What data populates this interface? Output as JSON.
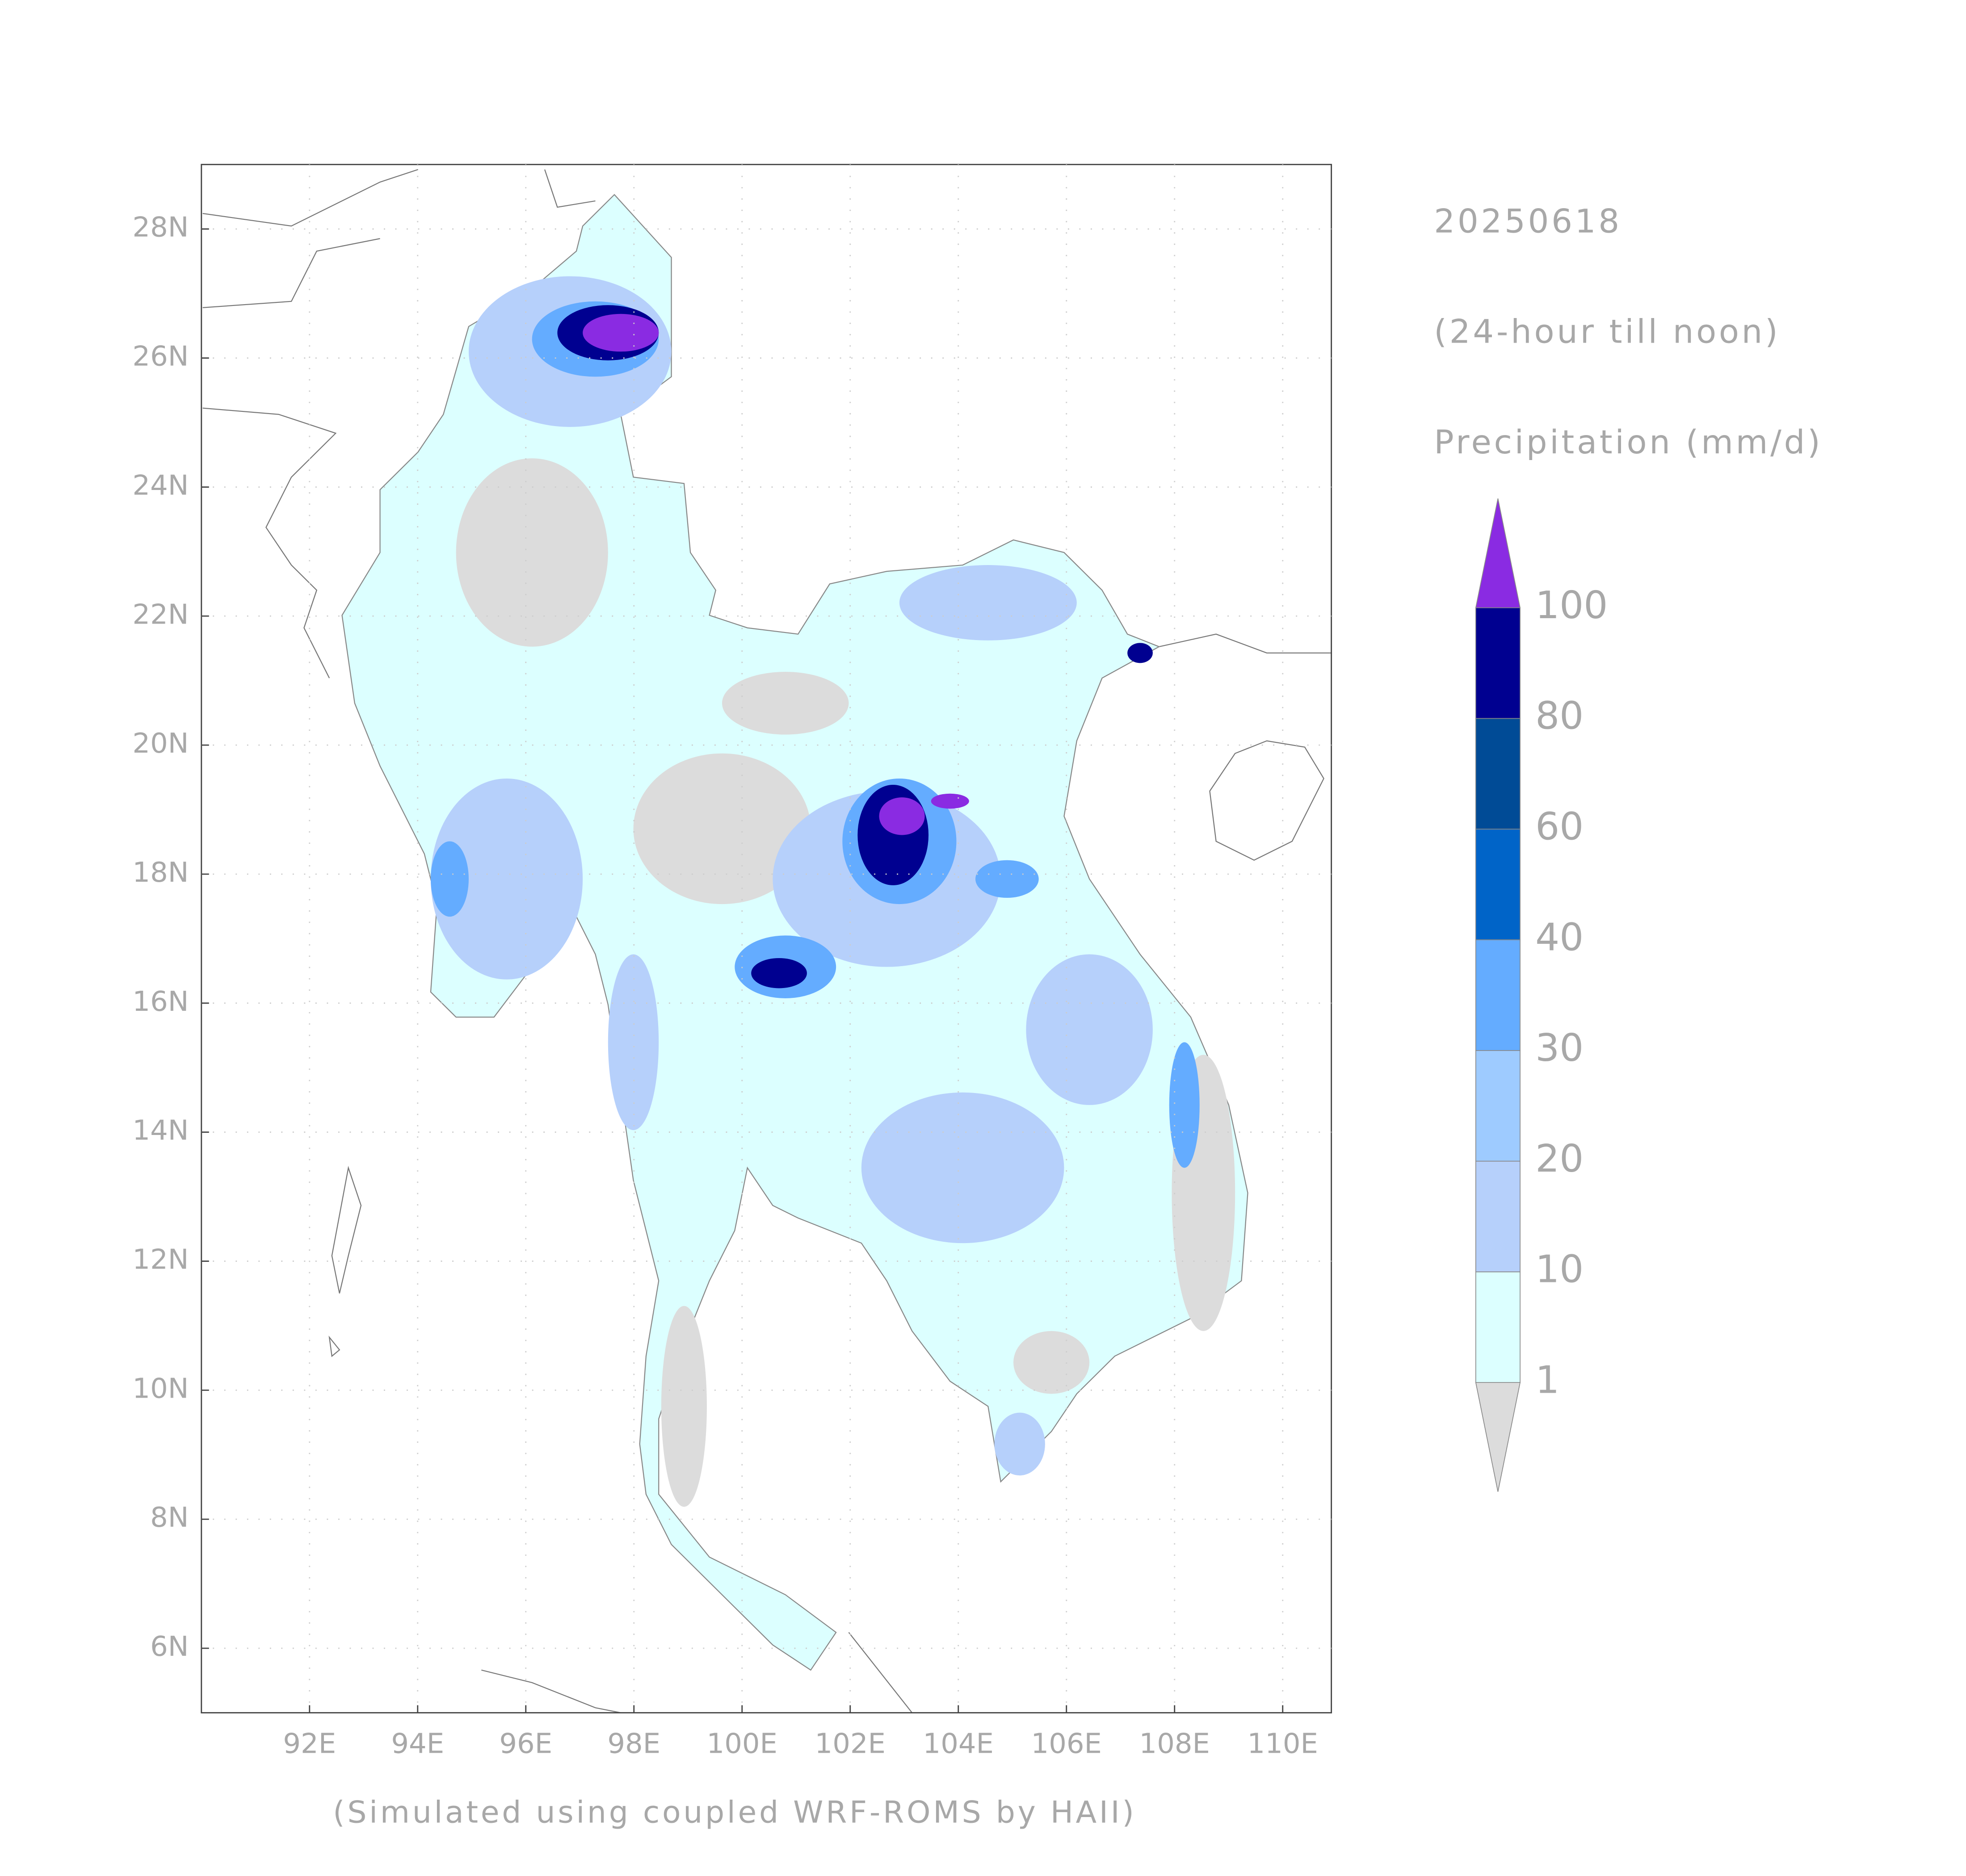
{
  "map": {
    "lonlim": [
      90,
      110.9
    ],
    "latlim": [
      5,
      29
    ],
    "lonticks": [
      {
        "value": 92,
        "label": "92E"
      },
      {
        "value": 94,
        "label": "94E"
      },
      {
        "value": 96,
        "label": "96E"
      },
      {
        "value": 98,
        "label": "98E"
      },
      {
        "value": 100,
        "label": "100E"
      },
      {
        "value": 102,
        "label": "102E"
      },
      {
        "value": 104,
        "label": "104E"
      },
      {
        "value": 106,
        "label": "106E"
      },
      {
        "value": 108,
        "label": "108E"
      },
      {
        "value": 110,
        "label": "110E"
      }
    ],
    "latticks": [
      {
        "value": 6,
        "label": "6N"
      },
      {
        "value": 8,
        "label": "8N"
      },
      {
        "value": 10,
        "label": "10N"
      },
      {
        "value": 12,
        "label": "12N"
      },
      {
        "value": 14,
        "label": "14N"
      },
      {
        "value": 16,
        "label": "16N"
      },
      {
        "value": 18,
        "label": "18N"
      },
      {
        "value": 20,
        "label": "20N"
      },
      {
        "value": 22,
        "label": "22N"
      },
      {
        "value": 24,
        "label": "24N"
      },
      {
        "value": 26,
        "label": "26N"
      },
      {
        "value": 28,
        "label": "28N"
      }
    ],
    "grid": true,
    "footer": "(Simulated using coupled WRF-ROMS by HAII)"
  },
  "panel": {
    "date": "20250618",
    "period": "(24-hour till noon)",
    "variable": "Precipitation (mm/d)"
  },
  "legend": {
    "levels": [
      1,
      10,
      20,
      30,
      40,
      60,
      80,
      100
    ],
    "colors": [
      "#dcdcdc",
      "#dcffff",
      "#b6d0fb",
      "#9ecbff",
      "#64acff",
      "#0064c8",
      "#004b96",
      "#000090",
      "#8a2be2"
    ]
  }
}
